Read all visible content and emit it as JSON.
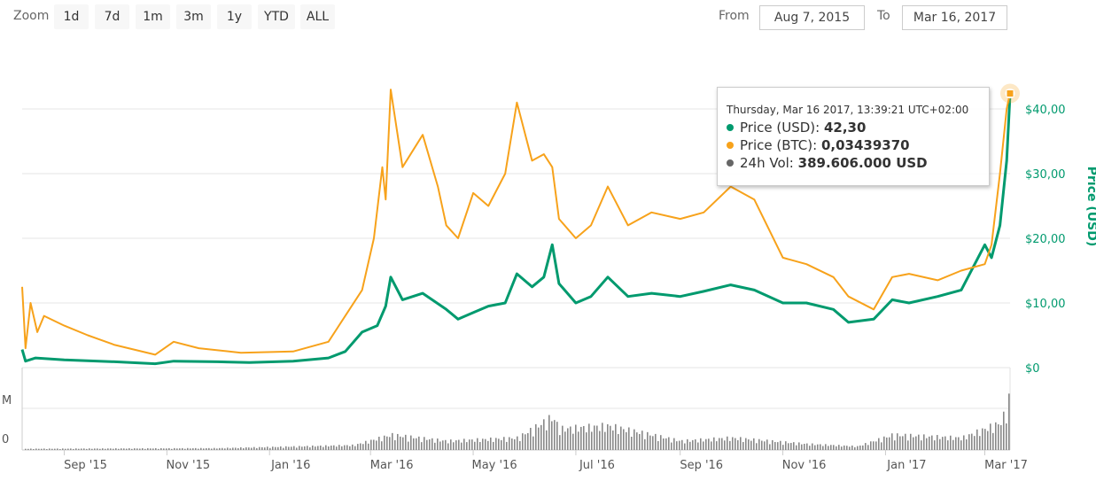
{
  "toolbar": {
    "zoom_label": "Zoom",
    "zoom_buttons": [
      "1d",
      "7d",
      "1m",
      "3m",
      "1y",
      "YTD",
      "ALL"
    ],
    "from_label": "From",
    "from_value": "Aug 7, 2015",
    "to_label": "To",
    "to_value": "Mar 16, 2017"
  },
  "tooltip": {
    "header": "Thursday, Mar 16 2017, 13:39:21 UTC+02:00",
    "rows": [
      {
        "label": "Price (USD):",
        "value": "42,30",
        "color": "#009a6e"
      },
      {
        "label": "Price (BTC):",
        "value": "0,03439370",
        "color": "#f7a21b"
      },
      {
        "label": "24h Vol:",
        "value": "389.606.000 USD",
        "color": "#666666"
      }
    ]
  },
  "chart_data": {
    "type": "line",
    "x_range": [
      "2015-08-07",
      "2017-03-16"
    ],
    "x_ticks": [
      "Sep '15",
      "Nov '15",
      "Jan '16",
      "Mar '16",
      "May '16",
      "Jul '16",
      "Sep '16",
      "Nov '16",
      "Jan '17",
      "Mar '17"
    ],
    "y_right_label": "Price (USD)",
    "y_right_ticks": [
      "$0",
      "$10,00",
      "$20,00",
      "$30,00",
      "$40,00"
    ],
    "ylim": [
      0,
      40
    ],
    "volume_axis_labels": [
      "M",
      "0"
    ],
    "colors": {
      "usd": "#009a6e",
      "btc": "#f7a21b",
      "volume": "#888888",
      "grid": "#e6e6e6"
    },
    "series": [
      {
        "name": "Price (USD)",
        "color": "#009a6e",
        "points": [
          [
            "2015-08-07",
            2.8
          ],
          [
            "2015-08-09",
            1.0
          ],
          [
            "2015-08-15",
            1.5
          ],
          [
            "2015-09-01",
            1.2
          ],
          [
            "2015-10-01",
            0.9
          ],
          [
            "2015-10-25",
            0.6
          ],
          [
            "2015-11-05",
            1.0
          ],
          [
            "2015-12-01",
            0.9
          ],
          [
            "2015-12-20",
            0.8
          ],
          [
            "2016-01-15",
            1.0
          ],
          [
            "2016-02-05",
            1.5
          ],
          [
            "2016-02-15",
            2.5
          ],
          [
            "2016-02-25",
            5.5
          ],
          [
            "2016-03-05",
            6.5
          ],
          [
            "2016-03-10",
            9.5
          ],
          [
            "2016-03-13",
            14.0
          ],
          [
            "2016-03-20",
            10.5
          ],
          [
            "2016-04-01",
            11.5
          ],
          [
            "2016-04-15",
            9.0
          ],
          [
            "2016-04-22",
            7.5
          ],
          [
            "2016-05-01",
            8.5
          ],
          [
            "2016-05-10",
            9.5
          ],
          [
            "2016-05-20",
            10.0
          ],
          [
            "2016-05-27",
            14.5
          ],
          [
            "2016-06-05",
            12.5
          ],
          [
            "2016-06-12",
            14.0
          ],
          [
            "2016-06-17",
            19.0
          ],
          [
            "2016-06-21",
            13.0
          ],
          [
            "2016-07-01",
            10.0
          ],
          [
            "2016-07-10",
            11.0
          ],
          [
            "2016-07-20",
            14.0
          ],
          [
            "2016-08-01",
            11.0
          ],
          [
            "2016-08-15",
            11.5
          ],
          [
            "2016-09-01",
            11.0
          ],
          [
            "2016-09-15",
            11.8
          ],
          [
            "2016-10-01",
            12.8
          ],
          [
            "2016-10-15",
            12.0
          ],
          [
            "2016-11-01",
            10.0
          ],
          [
            "2016-11-15",
            10.0
          ],
          [
            "2016-12-01",
            9.0
          ],
          [
            "2016-12-10",
            7.0
          ],
          [
            "2016-12-25",
            7.5
          ],
          [
            "2017-01-05",
            10.5
          ],
          [
            "2017-01-15",
            10.0
          ],
          [
            "2017-02-01",
            11.0
          ],
          [
            "2017-02-15",
            12.0
          ],
          [
            "2017-03-01",
            19.0
          ],
          [
            "2017-03-05",
            17.0
          ],
          [
            "2017-03-10",
            22.0
          ],
          [
            "2017-03-14",
            32.0
          ],
          [
            "2017-03-16",
            42.3
          ]
        ]
      },
      {
        "name": "Price (BTC)",
        "color": "#f7a21b",
        "points": [
          [
            "2015-08-07",
            12.5
          ],
          [
            "2015-08-09",
            3.0
          ],
          [
            "2015-08-12",
            10.0
          ],
          [
            "2015-08-16",
            5.5
          ],
          [
            "2015-08-20",
            8.0
          ],
          [
            "2015-09-01",
            6.5
          ],
          [
            "2015-09-15",
            5.0
          ],
          [
            "2015-10-01",
            3.5
          ],
          [
            "2015-10-25",
            2.0
          ],
          [
            "2015-11-05",
            4.0
          ],
          [
            "2015-11-20",
            3.0
          ],
          [
            "2015-12-15",
            2.3
          ],
          [
            "2016-01-15",
            2.5
          ],
          [
            "2016-02-05",
            4.0
          ],
          [
            "2016-02-15",
            8.0
          ],
          [
            "2016-02-25",
            12.0
          ],
          [
            "2016-03-03",
            20.0
          ],
          [
            "2016-03-08",
            31.0
          ],
          [
            "2016-03-10",
            26.0
          ],
          [
            "2016-03-13",
            43.0
          ],
          [
            "2016-03-20",
            31.0
          ],
          [
            "2016-04-01",
            36.0
          ],
          [
            "2016-04-10",
            28.0
          ],
          [
            "2016-04-15",
            22.0
          ],
          [
            "2016-04-22",
            20.0
          ],
          [
            "2016-05-01",
            27.0
          ],
          [
            "2016-05-10",
            25.0
          ],
          [
            "2016-05-20",
            30.0
          ],
          [
            "2016-05-27",
            41.0
          ],
          [
            "2016-06-05",
            32.0
          ],
          [
            "2016-06-12",
            33.0
          ],
          [
            "2016-06-17",
            31.0
          ],
          [
            "2016-06-21",
            23.0
          ],
          [
            "2016-07-01",
            20.0
          ],
          [
            "2016-07-10",
            22.0
          ],
          [
            "2016-07-20",
            28.0
          ],
          [
            "2016-08-01",
            22.0
          ],
          [
            "2016-08-15",
            24.0
          ],
          [
            "2016-09-01",
            23.0
          ],
          [
            "2016-09-15",
            24.0
          ],
          [
            "2016-10-01",
            28.0
          ],
          [
            "2016-10-15",
            26.0
          ],
          [
            "2016-11-01",
            17.0
          ],
          [
            "2016-11-15",
            16.0
          ],
          [
            "2016-12-01",
            14.0
          ],
          [
            "2016-12-10",
            11.0
          ],
          [
            "2016-12-25",
            9.0
          ],
          [
            "2017-01-05",
            14.0
          ],
          [
            "2017-01-15",
            14.5
          ],
          [
            "2017-02-01",
            13.5
          ],
          [
            "2017-02-15",
            15.0
          ],
          [
            "2017-03-01",
            16.0
          ],
          [
            "2017-03-05",
            19.0
          ],
          [
            "2017-03-10",
            30.0
          ],
          [
            "2017-03-14",
            40.0
          ],
          [
            "2017-03-16",
            42.5
          ]
        ]
      }
    ],
    "volume": {
      "name": "24h Vol",
      "points": [
        [
          "2015-08-07",
          0.02
        ],
        [
          "2015-12-01",
          0.03
        ],
        [
          "2016-02-20",
          0.08
        ],
        [
          "2016-03-13",
          0.25
        ],
        [
          "2016-04-15",
          0.15
        ],
        [
          "2016-05-27",
          0.2
        ],
        [
          "2016-06-17",
          0.55
        ],
        [
          "2016-06-21",
          0.35
        ],
        [
          "2016-07-20",
          0.4
        ],
        [
          "2016-09-01",
          0.15
        ],
        [
          "2016-10-01",
          0.2
        ],
        [
          "2016-11-15",
          0.1
        ],
        [
          "2016-12-15",
          0.06
        ],
        [
          "2017-01-05",
          0.25
        ],
        [
          "2017-02-15",
          0.2
        ],
        [
          "2017-03-10",
          0.45
        ],
        [
          "2017-03-14",
          0.7
        ],
        [
          "2017-03-16",
          1.0
        ]
      ]
    }
  }
}
